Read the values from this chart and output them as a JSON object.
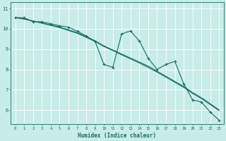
{
  "xlabel": "Humidex (Indice chaleur)",
  "bg_color": "#c8ece8",
  "grid_color": "#aad8d0",
  "line_color": "#1a6b60",
  "xlim": [
    -0.5,
    23.5
  ],
  "ylim": [
    5.3,
    11.3
  ],
  "yticks": [
    6,
    7,
    8,
    9,
    10,
    11
  ],
  "xticks": [
    0,
    1,
    2,
    3,
    4,
    5,
    6,
    7,
    8,
    9,
    10,
    11,
    12,
    13,
    14,
    15,
    16,
    17,
    18,
    19,
    20,
    21,
    22,
    23
  ],
  "line1_x": [
    0,
    1,
    2,
    3,
    4,
    5,
    6,
    7,
    8,
    9,
    10,
    11,
    12,
    13,
    14,
    15,
    16,
    17,
    18,
    19,
    20,
    21,
    22,
    23
  ],
  "line1_y": [
    10.55,
    10.55,
    10.35,
    10.35,
    10.25,
    10.15,
    10.08,
    9.88,
    9.65,
    9.38,
    8.25,
    8.1,
    9.75,
    9.9,
    9.4,
    8.55,
    8.0,
    8.25,
    8.4,
    7.3,
    6.5,
    6.4,
    5.9,
    5.5
  ],
  "line2_x": [
    0,
    1,
    2,
    3,
    4,
    5,
    6,
    7,
    8,
    9,
    10,
    11,
    12,
    13,
    14,
    15,
    16,
    17,
    18,
    19,
    20,
    21,
    22,
    23
  ],
  "line2_y": [
    10.55,
    10.48,
    10.38,
    10.28,
    10.17,
    10.06,
    9.92,
    9.78,
    9.58,
    9.38,
    9.13,
    8.93,
    8.72,
    8.52,
    8.32,
    8.1,
    7.87,
    7.62,
    7.37,
    7.12,
    6.82,
    6.57,
    6.27,
    5.97
  ],
  "line3_x": [
    0,
    1,
    2,
    3,
    4,
    5,
    6,
    7,
    8,
    9,
    10,
    11,
    12,
    13,
    14,
    15,
    16,
    17,
    18,
    19,
    20,
    21,
    22,
    23
  ],
  "line3_y": [
    10.55,
    10.49,
    10.39,
    10.29,
    10.19,
    10.09,
    9.95,
    9.81,
    9.61,
    9.41,
    9.16,
    8.96,
    8.76,
    8.56,
    8.36,
    8.16,
    7.91,
    7.66,
    7.41,
    7.16,
    6.86,
    6.61,
    6.31,
    6.01
  ]
}
